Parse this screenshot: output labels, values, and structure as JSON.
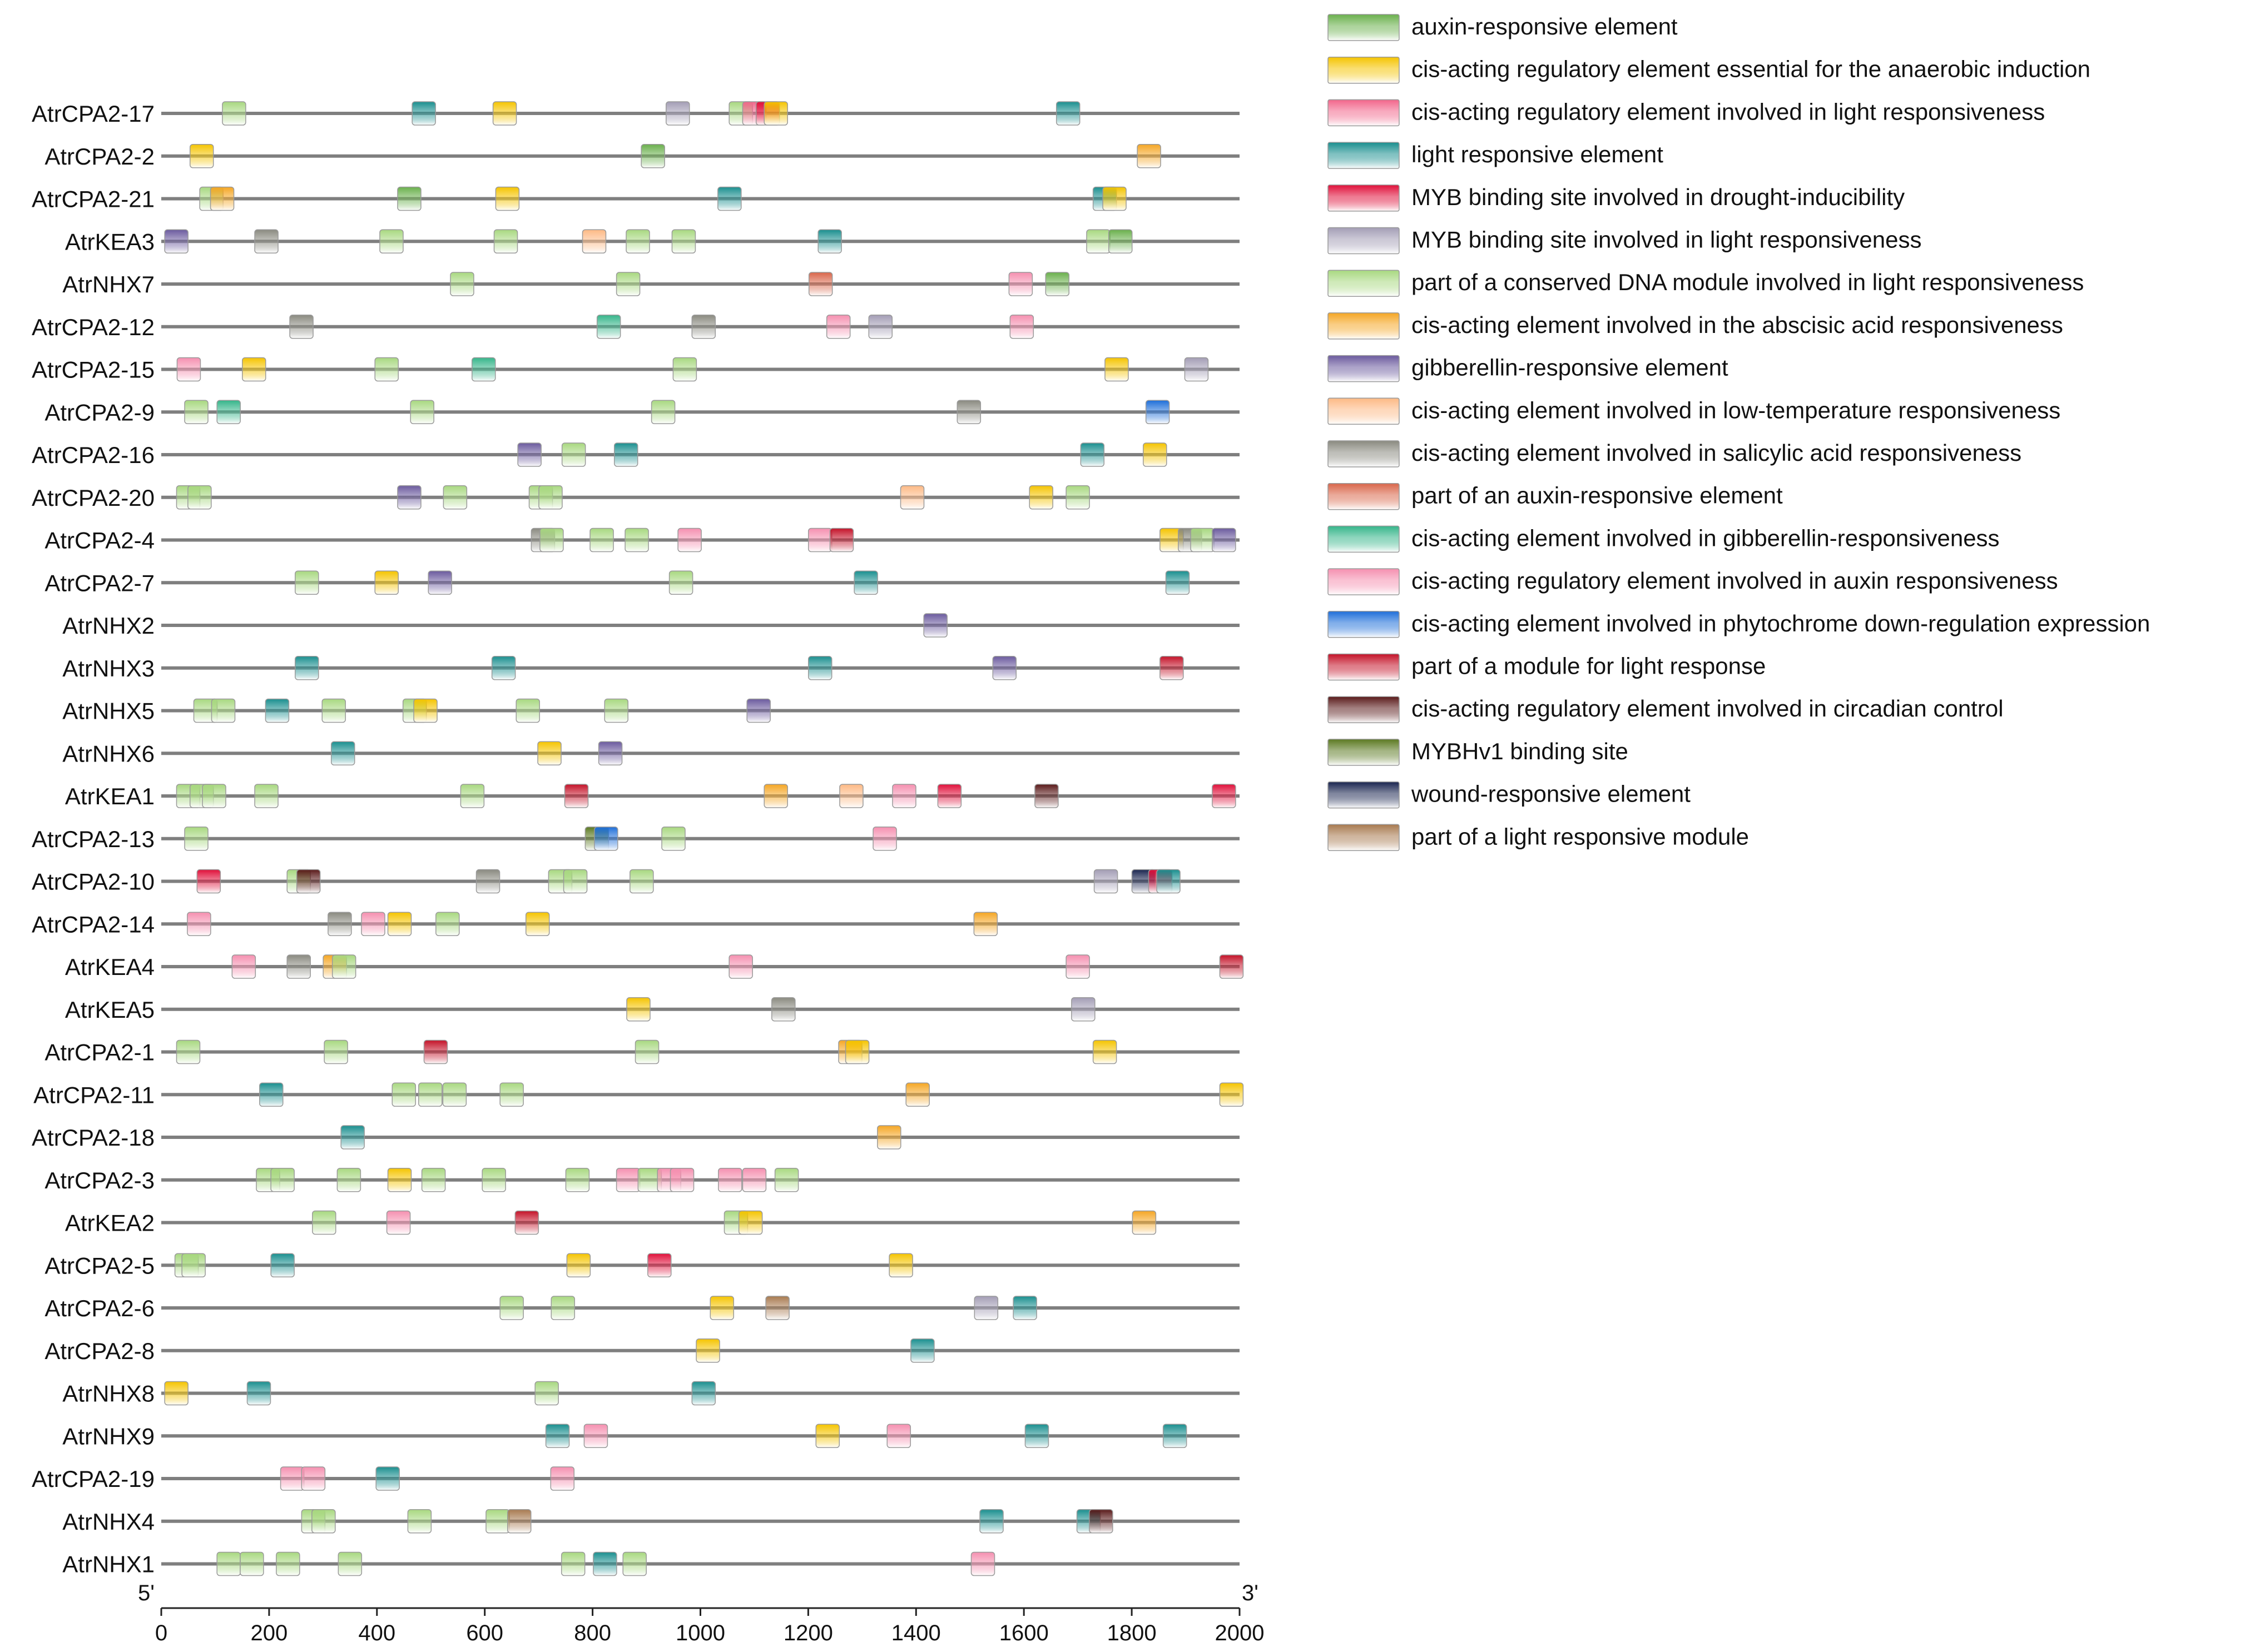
{
  "chart_data": {
    "type": "motif-map",
    "axis": {
      "min": 0,
      "max": 2000,
      "ticks": [
        0,
        200,
        400,
        600,
        800,
        1000,
        1200,
        1400,
        1600,
        1800,
        2000
      ],
      "start_label": "5'",
      "end_label": "3'"
    },
    "legend": [
      {
        "label": "auxin-responsive element",
        "color": "#6ab04c"
      },
      {
        "label": "cis-acting regulatory element essential for the anaerobic induction",
        "color": "#f5c400"
      },
      {
        "label": "cis-acting regulatory element involved in light responsiveness",
        "color": "#f2668b"
      },
      {
        "label": "light responsive element",
        "color": "#1a8f8f"
      },
      {
        "label": "MYB binding site involved in drought-inducibility",
        "color": "#e0103a"
      },
      {
        "label": "MYB binding site involved in light responsiveness",
        "color": "#a39db5"
      },
      {
        "label": "part of a conserved DNA module involved in light responsiveness",
        "color": "#a8d880"
      },
      {
        "label": "cis-acting element involved in the abscisic acid responsiveness",
        "color": "#f5a623"
      },
      {
        "label": "gibberellin-responsive element",
        "color": "#6b5a9e"
      },
      {
        "label": "cis-acting element involved in low-temperature responsiveness",
        "color": "#fdb985"
      },
      {
        "label": "cis-acting element involved in salicylic acid responsiveness",
        "color": "#8a8a80"
      },
      {
        "label": "part of an auxin-responsive element",
        "color": "#d9664a"
      },
      {
        "label": "cis-acting element involved in gibberellin-responsiveness",
        "color": "#35b58a"
      },
      {
        "label": "cis-acting regulatory element involved in auxin responsiveness",
        "color": "#f590b0"
      },
      {
        "label": "cis-acting element involved in phytochrome down-regulation  expression",
        "color": "#1e6fd9"
      },
      {
        "label": "part of a module for light response",
        "color": "#c41228"
      },
      {
        "label": "cis-acting regulatory element involved in circadian control",
        "color": "#5a1a1a"
      },
      {
        "label": "MYBHv1 binding site",
        "color": "#5c7a22"
      },
      {
        "label": "wound-responsive element",
        "color": "#1a2550"
      },
      {
        "label": "part of a light responsive module",
        "color": "#a87a50"
      }
    ],
    "genes": [
      {
        "name": "AtrCPA2-17",
        "motifs": [
          [
            135,
            6
          ],
          [
            487,
            3
          ],
          [
            637,
            1
          ],
          [
            958,
            5
          ],
          [
            1075,
            6
          ],
          [
            1100,
            2
          ],
          [
            1125,
            4
          ],
          [
            1140,
            1
          ],
          [
            1682,
            3
          ]
        ]
      },
      {
        "name": "AtrCPA2-2",
        "motifs": [
          [
            75,
            1
          ],
          [
            912,
            0
          ],
          [
            1832,
            7
          ]
        ]
      },
      {
        "name": "AtrCPA2-21",
        "motifs": [
          [
            93,
            6
          ],
          [
            113,
            7
          ],
          [
            460,
            0
          ],
          [
            642,
            1
          ],
          [
            1054,
            3
          ],
          [
            1750,
            3
          ],
          [
            1768,
            1
          ]
        ]
      },
      {
        "name": "AtrKEA3",
        "motifs": [
          [
            28,
            8
          ],
          [
            195,
            10
          ],
          [
            427,
            6
          ],
          [
            639,
            6
          ],
          [
            803,
            9
          ],
          [
            884,
            6
          ],
          [
            969,
            6
          ],
          [
            1240,
            3
          ],
          [
            1738,
            6
          ],
          [
            1779,
            0
          ]
        ]
      },
      {
        "name": "AtrNHX7",
        "motifs": [
          [
            558,
            6
          ],
          [
            866,
            6
          ],
          [
            1223,
            11
          ],
          [
            1594,
            13
          ],
          [
            1662,
            0
          ]
        ]
      },
      {
        "name": "AtrCPA2-12",
        "motifs": [
          [
            260,
            10
          ],
          [
            830,
            12
          ],
          [
            1006,
            10
          ],
          [
            1256,
            13
          ],
          [
            1334,
            5
          ],
          [
            1596,
            13
          ]
        ]
      },
      {
        "name": "AtrCPA2-15",
        "motifs": [
          [
            51,
            13
          ],
          [
            172,
            1
          ],
          [
            418,
            6
          ],
          [
            598,
            12
          ],
          [
            971,
            6
          ],
          [
            1772,
            1
          ],
          [
            1920,
            5
          ]
        ]
      },
      {
        "name": "AtrCPA2-9",
        "motifs": [
          [
            65,
            6
          ],
          [
            125,
            12
          ],
          [
            484,
            6
          ],
          [
            931,
            6
          ],
          [
            1498,
            10
          ],
          [
            1848,
            14
          ]
        ]
      },
      {
        "name": "AtrCPA2-16",
        "motifs": [
          [
            683,
            8
          ],
          [
            765,
            6
          ],
          [
            862,
            3
          ],
          [
            1727,
            3
          ],
          [
            1843,
            1
          ]
        ]
      },
      {
        "name": "AtrCPA2-20",
        "motifs": [
          [
            50,
            6
          ],
          [
            71,
            6
          ],
          [
            460,
            8
          ],
          [
            545,
            6
          ],
          [
            704,
            6
          ],
          [
            722,
            6
          ],
          [
            1393,
            9
          ],
          [
            1632,
            1
          ],
          [
            1700,
            6
          ]
        ]
      },
      {
        "name": "AtrCPA2-4",
        "motifs": [
          [
            708,
            10
          ],
          [
            724,
            6
          ],
          [
            817,
            6
          ],
          [
            882,
            6
          ],
          [
            980,
            13
          ],
          [
            1222,
            13
          ],
          [
            1262,
            15
          ],
          [
            1874,
            1
          ],
          [
            1908,
            10
          ],
          [
            1931,
            6
          ],
          [
            1971,
            8
          ]
        ]
      },
      {
        "name": "AtrCPA2-7",
        "motifs": [
          [
            270,
            6
          ],
          [
            418,
            1
          ],
          [
            517,
            8
          ],
          [
            964,
            6
          ],
          [
            1307,
            3
          ],
          [
            1885,
            3
          ]
        ]
      },
      {
        "name": "AtrNHX2",
        "motifs": [
          [
            1436,
            8
          ]
        ]
      },
      {
        "name": "AtrNHX3",
        "motifs": [
          [
            270,
            3
          ],
          [
            635,
            3
          ],
          [
            1222,
            3
          ],
          [
            1564,
            8
          ],
          [
            1874,
            15
          ]
        ]
      },
      {
        "name": "AtrNHX5",
        "motifs": [
          [
            82,
            6
          ],
          [
            115,
            6
          ],
          [
            215,
            3
          ],
          [
            320,
            6
          ],
          [
            470,
            6
          ],
          [
            490,
            1
          ],
          [
            680,
            6
          ],
          [
            844,
            6
          ],
          [
            1108,
            8
          ]
        ]
      },
      {
        "name": "AtrNHX6",
        "motifs": [
          [
            337,
            3
          ],
          [
            720,
            1
          ],
          [
            833,
            8
          ]
        ]
      },
      {
        "name": "AtrKEA1",
        "motifs": [
          [
            50,
            6
          ],
          [
            75,
            6
          ],
          [
            98,
            6
          ],
          [
            195,
            6
          ],
          [
            577,
            6
          ],
          [
            770,
            15
          ],
          [
            1140,
            7
          ],
          [
            1280,
            9
          ],
          [
            1378,
            13
          ],
          [
            1462,
            4
          ],
          [
            1642,
            16
          ],
          [
            1971,
            4
          ]
        ]
      },
      {
        "name": "AtrCPA2-13",
        "motifs": [
          [
            65,
            6
          ],
          [
            808,
            17
          ],
          [
            825,
            14
          ],
          [
            950,
            6
          ],
          [
            1342,
            13
          ]
        ]
      },
      {
        "name": "AtrCPA2-10",
        "motifs": [
          [
            88,
            4
          ],
          [
            255,
            6
          ],
          [
            273,
            16
          ],
          [
            606,
            10
          ],
          [
            740,
            6
          ],
          [
            768,
            6
          ],
          [
            891,
            6
          ],
          [
            1752,
            5
          ],
          [
            1822,
            18
          ],
          [
            1853,
            4
          ],
          [
            1868,
            3
          ]
        ]
      },
      {
        "name": "AtrCPA2-14",
        "motifs": [
          [
            70,
            13
          ],
          [
            331,
            10
          ],
          [
            393,
            13
          ],
          [
            442,
            1
          ],
          [
            531,
            6
          ],
          [
            698,
            1
          ],
          [
            1529,
            7
          ]
        ]
      },
      {
        "name": "AtrKEA4",
        "motifs": [
          [
            153,
            13
          ],
          [
            255,
            10
          ],
          [
            322,
            7
          ],
          [
            339,
            6
          ],
          [
            1075,
            13
          ],
          [
            1700,
            13
          ],
          [
            1985,
            15
          ]
        ]
      },
      {
        "name": "AtrKEA5",
        "motifs": [
          [
            885,
            1
          ],
          [
            1154,
            10
          ],
          [
            1710,
            5
          ]
        ]
      },
      {
        "name": "AtrCPA2-1",
        "motifs": [
          [
            50,
            6
          ],
          [
            324,
            6
          ],
          [
            509,
            15
          ],
          [
            901,
            6
          ],
          [
            1278,
            7
          ],
          [
            1291,
            1
          ],
          [
            1750,
            1
          ]
        ]
      },
      {
        "name": "AtrCPA2-11",
        "motifs": [
          [
            204,
            3
          ],
          [
            450,
            6
          ],
          [
            499,
            6
          ],
          [
            544,
            6
          ],
          [
            650,
            6
          ],
          [
            1403,
            7
          ],
          [
            1985,
            1
          ]
        ]
      },
      {
        "name": "AtrCPA2-18",
        "motifs": [
          [
            355,
            3
          ],
          [
            1350,
            7
          ]
        ]
      },
      {
        "name": "AtrCPA2-3",
        "motifs": [
          [
            198,
            6
          ],
          [
            225,
            6
          ],
          [
            348,
            6
          ],
          [
            442,
            1
          ],
          [
            505,
            6
          ],
          [
            617,
            6
          ],
          [
            772,
            6
          ],
          [
            866,
            13
          ],
          [
            906,
            6
          ],
          [
            942,
            13
          ],
          [
            966,
            13
          ],
          [
            1055,
            13
          ],
          [
            1100,
            13
          ],
          [
            1160,
            6
          ]
        ]
      },
      {
        "name": "AtrKEA2",
        "motifs": [
          [
            302,
            6
          ],
          [
            440,
            13
          ],
          [
            678,
            15
          ],
          [
            1066,
            6
          ],
          [
            1093,
            1
          ],
          [
            1823,
            7
          ]
        ]
      },
      {
        "name": "AtrCPA2-5",
        "motifs": [
          [
            47,
            6
          ],
          [
            60,
            6
          ],
          [
            225,
            3
          ],
          [
            774,
            1
          ],
          [
            924,
            4
          ],
          [
            1372,
            1
          ]
        ]
      },
      {
        "name": "AtrCPA2-6",
        "motifs": [
          [
            650,
            6
          ],
          [
            745,
            6
          ],
          [
            1040,
            1
          ],
          [
            1143,
            19
          ],
          [
            1530,
            5
          ],
          [
            1602,
            3
          ]
        ]
      },
      {
        "name": "AtrCPA2-8",
        "motifs": [
          [
            1014,
            1
          ],
          [
            1412,
            3
          ]
        ]
      },
      {
        "name": "AtrNHX8",
        "motifs": [
          [
            28,
            1
          ],
          [
            181,
            3
          ],
          [
            715,
            6
          ],
          [
            1006,
            3
          ]
        ]
      },
      {
        "name": "AtrNHX9",
        "motifs": [
          [
            735,
            3
          ],
          [
            806,
            13
          ],
          [
            1236,
            1
          ],
          [
            1368,
            13
          ],
          [
            1624,
            3
          ],
          [
            1880,
            3
          ]
        ]
      },
      {
        "name": "AtrCPA2-19",
        "motifs": [
          [
            243,
            13
          ],
          [
            282,
            13
          ],
          [
            420,
            3
          ],
          [
            744,
            13
          ]
        ]
      },
      {
        "name": "AtrNHX4",
        "motifs": [
          [
            282,
            6
          ],
          [
            301,
            6
          ],
          [
            479,
            6
          ],
          [
            624,
            6
          ],
          [
            664,
            19
          ],
          [
            1540,
            3
          ],
          [
            1720,
            3
          ],
          [
            1743,
            16
          ]
        ]
      },
      {
        "name": "AtrNHX1",
        "motifs": [
          [
            125,
            6
          ],
          [
            168,
            6
          ],
          [
            235,
            6
          ],
          [
            350,
            6
          ],
          [
            764,
            6
          ],
          [
            823,
            3
          ],
          [
            878,
            6
          ],
          [
            1524,
            13
          ]
        ]
      }
    ]
  }
}
